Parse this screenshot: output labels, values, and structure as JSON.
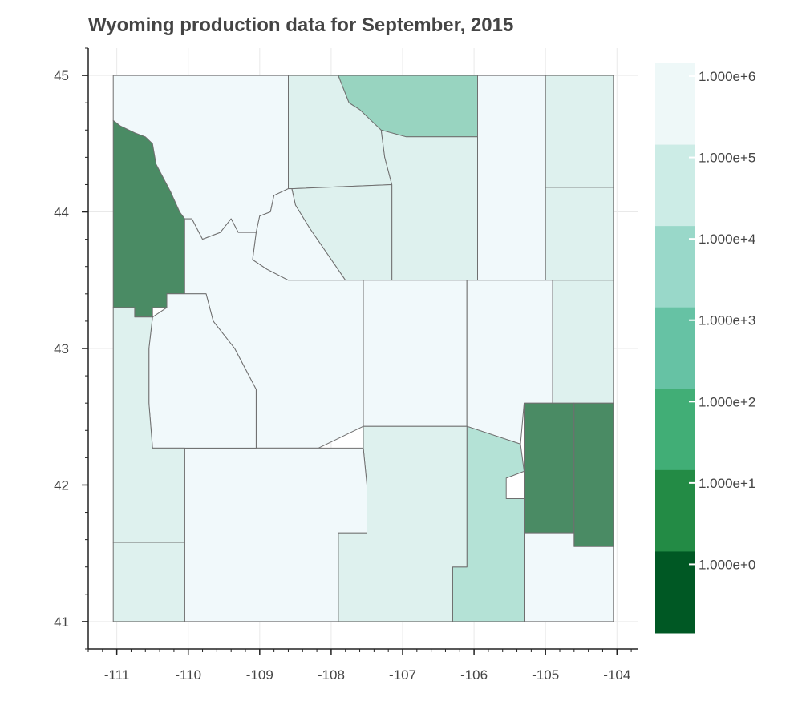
{
  "title": "Wyoming production data for September, 2015",
  "palette": {
    "frame": "#ffffff",
    "grid": "#e9e9e9",
    "axis": "#222222",
    "border": "#6f6f6f",
    "text": "#444444",
    "title": "#444444"
  },
  "chart_data": {
    "type": "choropleth",
    "title": "Wyoming production data for September, 2015",
    "xlim": [
      -111.4,
      -103.7
    ],
    "ylim": [
      40.8,
      45.2
    ],
    "x_ticks": [
      -111,
      -110,
      -109,
      -108,
      -107,
      -106,
      -105,
      -104
    ],
    "x_tick_labels": [
      "-111",
      "-110",
      "-109",
      "-108",
      "-107",
      "-106",
      "-105",
      "-104"
    ],
    "y_ticks": [
      41,
      42,
      43,
      44,
      45
    ],
    "y_tick_labels": [
      "41",
      "42",
      "43",
      "44",
      "45"
    ],
    "grid": true,
    "colorbar": {
      "placement": "right",
      "scale": "log",
      "labels": [
        "1.000e+6",
        "1.000e+5",
        "1.000e+4",
        "1.000e+3",
        "1.000e+2",
        "1.000e+1",
        "1.000e+0"
      ],
      "colors": [
        "#eef8f8",
        "#ccece6",
        "#99d8c9",
        "#66c2a4",
        "#41ae76",
        "#238b45",
        "#005824"
      ]
    },
    "regions": [
      {
        "name": "county-west-north",
        "color": "#4a8b64",
        "polygon": [
          [
            -111.05,
            44.67
          ],
          [
            -110.95,
            44.63
          ],
          [
            -110.75,
            44.58
          ],
          [
            -110.6,
            44.55
          ],
          [
            -110.5,
            44.5
          ],
          [
            -110.45,
            44.35
          ],
          [
            -110.35,
            44.25
          ],
          [
            -110.25,
            44.15
          ],
          [
            -110.12,
            44.0
          ],
          [
            -110.05,
            43.95
          ],
          [
            -110.05,
            43.4
          ],
          [
            -110.3,
            43.4
          ],
          [
            -110.3,
            43.3
          ],
          [
            -110.5,
            43.3
          ],
          [
            -110.5,
            43.23
          ],
          [
            -110.75,
            43.23
          ],
          [
            -110.75,
            43.3
          ],
          [
            -111.05,
            43.3
          ]
        ]
      },
      {
        "name": "county-northwest",
        "color": "#f1f9fb",
        "polygon": [
          [
            -111.05,
            45.0
          ],
          [
            -108.6,
            45.0
          ],
          [
            -108.6,
            44.17
          ],
          [
            -108.8,
            44.12
          ],
          [
            -108.85,
            44.0
          ],
          [
            -109.0,
            43.97
          ],
          [
            -109.05,
            43.85
          ],
          [
            -109.3,
            43.85
          ],
          [
            -109.4,
            43.95
          ],
          [
            -109.55,
            43.85
          ],
          [
            -109.8,
            43.8
          ],
          [
            -109.95,
            43.95
          ],
          [
            -110.05,
            43.95
          ],
          [
            -110.12,
            44.0
          ],
          [
            -110.25,
            44.15
          ],
          [
            -110.35,
            44.25
          ],
          [
            -110.45,
            44.35
          ],
          [
            -110.5,
            44.5
          ],
          [
            -110.6,
            44.55
          ],
          [
            -110.75,
            44.58
          ],
          [
            -110.95,
            44.63
          ],
          [
            -111.05,
            44.67
          ]
        ]
      },
      {
        "name": "county-sheridan-west",
        "color": "#def1ee",
        "polygon": [
          [
            -108.6,
            45.0
          ],
          [
            -107.9,
            45.0
          ],
          [
            -107.75,
            44.8
          ],
          [
            -107.6,
            44.75
          ],
          [
            -107.4,
            44.65
          ],
          [
            -107.3,
            44.6
          ],
          [
            -107.25,
            44.4
          ],
          [
            -107.15,
            44.2
          ],
          [
            -108.55,
            44.17
          ],
          [
            -108.6,
            44.17
          ]
        ]
      },
      {
        "name": "county-sheridan",
        "color": "#98d4c0",
        "polygon": [
          [
            -107.9,
            45.0
          ],
          [
            -105.95,
            45.0
          ],
          [
            -105.95,
            44.55
          ],
          [
            -106.95,
            44.55
          ],
          [
            -107.3,
            44.6
          ],
          [
            -107.4,
            44.65
          ],
          [
            -107.6,
            44.75
          ],
          [
            -107.75,
            44.8
          ]
        ]
      },
      {
        "name": "county-johnson",
        "color": "#def1ee",
        "polygon": [
          [
            -107.3,
            44.6
          ],
          [
            -106.95,
            44.55
          ],
          [
            -105.95,
            44.55
          ],
          [
            -105.95,
            43.5
          ],
          [
            -107.0,
            43.5
          ],
          [
            -107.15,
            43.5
          ],
          [
            -107.15,
            44.2
          ],
          [
            -107.25,
            44.4
          ]
        ]
      },
      {
        "name": "county-campbell",
        "color": "#f1f9fb",
        "polygon": [
          [
            -105.95,
            45.0
          ],
          [
            -105.0,
            45.0
          ],
          [
            -105.0,
            43.5
          ],
          [
            -105.95,
            43.5
          ]
        ]
      },
      {
        "name": "county-crook",
        "color": "#def1ee",
        "polygon": [
          [
            -105.0,
            45.0
          ],
          [
            -104.05,
            45.0
          ],
          [
            -104.05,
            44.18
          ],
          [
            -105.0,
            44.18
          ]
        ]
      },
      {
        "name": "county-weston",
        "color": "#def1ee",
        "polygon": [
          [
            -105.0,
            44.18
          ],
          [
            -104.05,
            44.18
          ],
          [
            -104.05,
            43.5
          ],
          [
            -105.0,
            43.5
          ]
        ]
      },
      {
        "name": "county-washakie",
        "color": "#def1ee",
        "polygon": [
          [
            -108.55,
            44.17
          ],
          [
            -107.15,
            44.2
          ],
          [
            -107.15,
            43.5
          ],
          [
            -107.8,
            43.5
          ],
          [
            -108.3,
            43.88
          ],
          [
            -108.5,
            44.05
          ]
        ]
      },
      {
        "name": "county-hot-springs",
        "color": "#f1f9fb",
        "polygon": [
          [
            -109.05,
            43.85
          ],
          [
            -109.0,
            43.97
          ],
          [
            -108.85,
            44.0
          ],
          [
            -108.8,
            44.12
          ],
          [
            -108.6,
            44.17
          ],
          [
            -108.55,
            44.17
          ],
          [
            -108.5,
            44.05
          ],
          [
            -108.3,
            43.88
          ],
          [
            -107.8,
            43.5
          ],
          [
            -108.1,
            43.5
          ],
          [
            -108.6,
            43.5
          ],
          [
            -108.9,
            43.58
          ],
          [
            -109.1,
            43.65
          ]
        ]
      },
      {
        "name": "county-fremont",
        "color": "#f1f9fb",
        "polygon": [
          [
            -110.05,
            43.4
          ],
          [
            -110.05,
            43.95
          ],
          [
            -109.95,
            43.95
          ],
          [
            -109.8,
            43.8
          ],
          [
            -109.55,
            43.85
          ],
          [
            -109.4,
            43.95
          ],
          [
            -109.3,
            43.85
          ],
          [
            -109.05,
            43.85
          ],
          [
            -109.1,
            43.65
          ],
          [
            -108.9,
            43.58
          ],
          [
            -108.6,
            43.5
          ],
          [
            -108.1,
            43.5
          ],
          [
            -107.8,
            43.5
          ],
          [
            -107.55,
            43.5
          ],
          [
            -107.55,
            42.43
          ],
          [
            -108.18,
            42.27
          ],
          [
            -109.05,
            42.27
          ],
          [
            -109.05,
            42.7
          ],
          [
            -109.35,
            43.0
          ],
          [
            -109.65,
            43.2
          ],
          [
            -109.75,
            43.4
          ]
        ]
      },
      {
        "name": "county-natrona",
        "color": "#f1f9fb",
        "polygon": [
          [
            -107.55,
            43.5
          ],
          [
            -106.1,
            43.5
          ],
          [
            -106.1,
            42.43
          ],
          [
            -107.55,
            42.43
          ]
        ]
      },
      {
        "name": "county-converse",
        "color": "#f1f9fb",
        "polygon": [
          [
            -106.1,
            43.5
          ],
          [
            -104.9,
            43.5
          ],
          [
            -104.9,
            42.6
          ],
          [
            -105.3,
            42.6
          ],
          [
            -105.35,
            42.3
          ],
          [
            -106.1,
            42.43
          ]
        ]
      },
      {
        "name": "county-niobrara",
        "color": "#def1ee",
        "polygon": [
          [
            -104.9,
            43.5
          ],
          [
            -104.05,
            43.5
          ],
          [
            -104.05,
            42.6
          ],
          [
            -104.9,
            42.6
          ]
        ]
      },
      {
        "name": "county-goshen",
        "color": "#4a8b64",
        "polygon": [
          [
            -105.3,
            42.6
          ],
          [
            -104.6,
            42.6
          ],
          [
            -104.6,
            41.65
          ],
          [
            -105.3,
            41.65
          ]
        ]
      },
      {
        "name": "county-goshen-east",
        "color": "#4a8b64",
        "polygon": [
          [
            -104.6,
            42.6
          ],
          [
            -104.05,
            42.6
          ],
          [
            -104.05,
            41.55
          ],
          [
            -104.6,
            41.55
          ]
        ]
      },
      {
        "name": "county-laramie",
        "color": "#f1f9fb",
        "polygon": [
          [
            -105.3,
            41.65
          ],
          [
            -104.6,
            41.65
          ],
          [
            -104.6,
            41.55
          ],
          [
            -104.05,
            41.55
          ],
          [
            -104.05,
            41.0
          ],
          [
            -105.3,
            41.0
          ]
        ]
      },
      {
        "name": "county-albany",
        "color": "#b4e2d6",
        "polygon": [
          [
            -106.1,
            42.43
          ],
          [
            -105.35,
            42.3
          ],
          [
            -105.3,
            42.1
          ],
          [
            -105.55,
            42.05
          ],
          [
            -105.55,
            41.9
          ],
          [
            -105.3,
            41.9
          ],
          [
            -105.3,
            41.0
          ],
          [
            -106.3,
            41.0
          ],
          [
            -106.3,
            41.4
          ],
          [
            -106.1,
            41.4
          ]
        ]
      },
      {
        "name": "county-carbon",
        "color": "#def1ee",
        "polygon": [
          [
            -107.55,
            42.43
          ],
          [
            -106.1,
            42.43
          ],
          [
            -106.1,
            41.4
          ],
          [
            -106.3,
            41.4
          ],
          [
            -106.3,
            41.0
          ],
          [
            -107.9,
            41.0
          ],
          [
            -107.9,
            41.65
          ],
          [
            -107.5,
            41.65
          ],
          [
            -107.5,
            42.0
          ],
          [
            -107.55,
            42.27
          ]
        ]
      },
      {
        "name": "county-sweetwater",
        "color": "#f1f9fb",
        "polygon": [
          [
            -110.05,
            42.27
          ],
          [
            -109.05,
            42.27
          ],
          [
            -108.18,
            42.27
          ],
          [
            -107.55,
            42.27
          ],
          [
            -107.5,
            42.0
          ],
          [
            -107.5,
            41.65
          ],
          [
            -107.9,
            41.65
          ],
          [
            -107.9,
            41.0
          ],
          [
            -110.05,
            41.0
          ]
        ]
      },
      {
        "name": "county-sublette",
        "color": "#f1f9fb",
        "polygon": [
          [
            -110.5,
            43.23
          ],
          [
            -110.3,
            43.3
          ],
          [
            -110.3,
            43.4
          ],
          [
            -110.05,
            43.4
          ],
          [
            -109.75,
            43.4
          ],
          [
            -109.65,
            43.2
          ],
          [
            -109.35,
            43.0
          ],
          [
            -109.05,
            42.7
          ],
          [
            -109.05,
            42.27
          ],
          [
            -110.05,
            42.27
          ],
          [
            -110.5,
            42.27
          ],
          [
            -110.55,
            42.6
          ],
          [
            -110.55,
            43.0
          ]
        ]
      },
      {
        "name": "county-lincoln",
        "color": "#def1ee",
        "polygon": [
          [
            -111.05,
            43.3
          ],
          [
            -110.75,
            43.3
          ],
          [
            -110.75,
            43.23
          ],
          [
            -110.5,
            43.23
          ],
          [
            -110.55,
            43.0
          ],
          [
            -110.55,
            42.6
          ],
          [
            -110.5,
            42.27
          ],
          [
            -110.05,
            42.27
          ],
          [
            -110.05,
            41.58
          ],
          [
            -111.05,
            41.58
          ]
        ]
      },
      {
        "name": "county-uinta",
        "color": "#def1ee",
        "polygon": [
          [
            -111.05,
            41.58
          ],
          [
            -110.05,
            41.58
          ],
          [
            -110.05,
            41.0
          ],
          [
            -111.05,
            41.0
          ]
        ]
      }
    ]
  }
}
